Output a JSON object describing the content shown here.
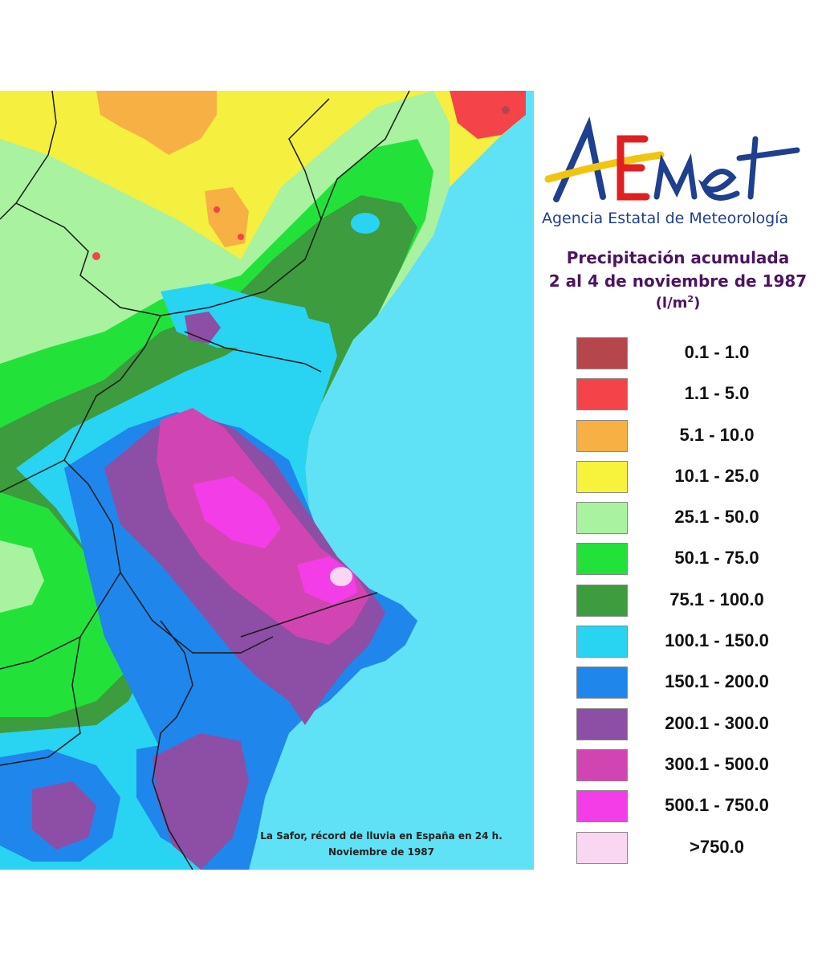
{
  "logo": {
    "brand": "AEmet",
    "agency": "Agencia Estatal de Meteorología"
  },
  "title": {
    "line1": "Precipitación acumulada",
    "line2": "2 al 4 de noviembre de 1987",
    "unit": "(l/m",
    "unit_sup": "2",
    "unit_end": ")"
  },
  "legend": [
    {
      "label": "0.1 - 1.0",
      "color": "#b5474c"
    },
    {
      "label": "1.1 - 5.0",
      "color": "#f4444a"
    },
    {
      "label": "5.1 - 10.0",
      "color": "#f7b043"
    },
    {
      "label": "10.1 - 25.0",
      "color": "#f7f23b"
    },
    {
      "label": "25.1 - 50.0",
      "color": "#a8f2a0"
    },
    {
      "label": "50.1 - 75.0",
      "color": "#22e23a"
    },
    {
      "label": "75.1 - 100.0",
      "color": "#3c9c3e"
    },
    {
      "label": "100.1 - 150.0",
      "color": "#29d3f2"
    },
    {
      "label": "150.1 - 200.0",
      "color": "#1f86ec"
    },
    {
      "label": "200.1 - 300.0",
      "color": "#8d4ea6"
    },
    {
      "label": "300.1 - 500.0",
      "color": "#d145b3"
    },
    {
      "label": "500.1 - 750.0",
      "color": "#f33de6"
    },
    {
      "label": ">750.0",
      "color": "#f9d6f1"
    }
  ],
  "caption": {
    "line1": "La Safor, récord de lluvia  en España  en 24 h.",
    "line2": "Noviembre de 1987"
  },
  "colors": {
    "sea": "#5fe1f6",
    "brand_blue": "#1f3f8f",
    "brand_yellow": "#f1c40f",
    "brand_red": "#e02020",
    "title_purple": "#4b1560"
  }
}
